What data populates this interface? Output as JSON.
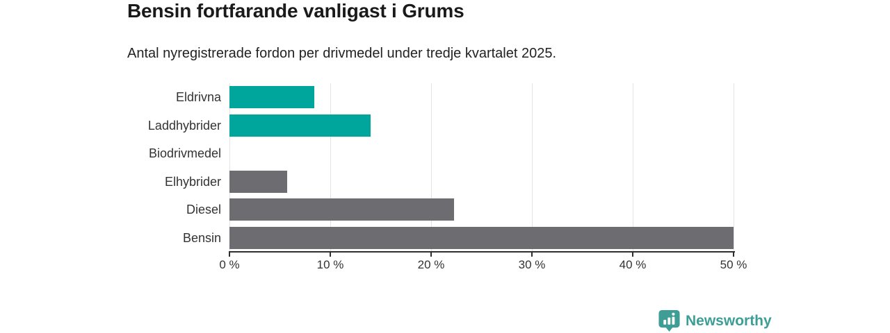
{
  "header": {
    "title": "Bensin fortfarande vanligast i Grums",
    "subtitle": "Antal nyregistrerade fordon per drivmedel under tredje kvartalet 2025."
  },
  "chart_data": {
    "type": "bar",
    "orientation": "horizontal",
    "title": "Bensin fortfarande vanligast i Grums",
    "subtitle": "Antal nyregistrerade fordon per drivmedel under tredje kvartalet 2025.",
    "categories": [
      "Eldrivna",
      "Laddhybrider",
      "Biodrivmedel",
      "Elhybrider",
      "Diesel",
      "Bensin"
    ],
    "values": [
      8.4,
      14.0,
      0,
      5.7,
      22.3,
      50.0
    ],
    "unit": "%",
    "bar_colors": [
      "#00a69c",
      "#00a69c",
      "#6c6c71",
      "#6c6c71",
      "#6c6c71",
      "#6c6c71"
    ],
    "xlabel": "",
    "ylabel": "",
    "xlim": [
      0,
      50
    ],
    "x_ticks": [
      0,
      10,
      20,
      30,
      40,
      50
    ],
    "x_tick_labels": [
      "0 %",
      "10 %",
      "20 %",
      "30 %",
      "40 %",
      "50 %"
    ],
    "grid": true,
    "legend": "none"
  },
  "branding": {
    "logo_text": "Newsworthy",
    "logo_color": "#3c9e96"
  },
  "colors": {
    "teal": "#00a69c",
    "gray": "#6c6c71",
    "axis": "#2e2e2e",
    "gridline": "#e3e3e3",
    "title_text": "#1a1a1a",
    "body_text": "#333333"
  }
}
